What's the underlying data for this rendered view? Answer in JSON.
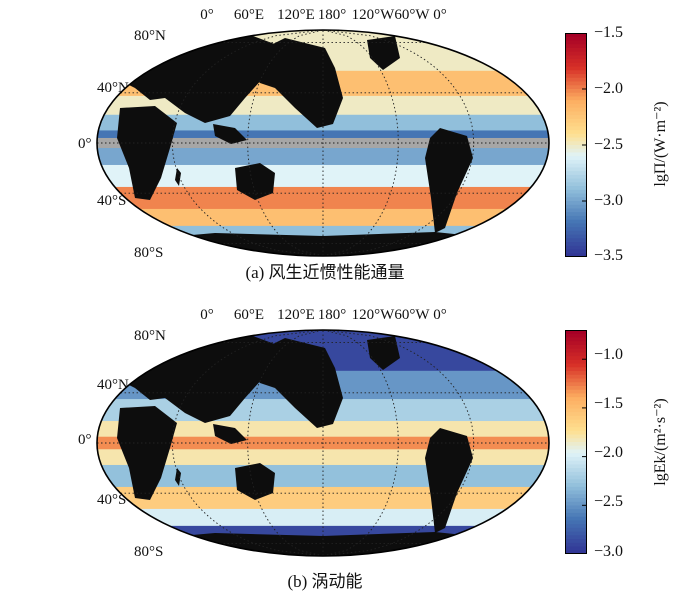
{
  "chart_data": [
    {
      "type": "heatmap",
      "panel": "a",
      "caption": "(a) 风生近惯性能通量",
      "colorbar": {
        "label": "lgΠ/(W·m⁻²)",
        "range": [
          -3.5,
          -1.5
        ],
        "ticks": [
          "−1.5",
          "−2.0",
          "−2.5",
          "−3.0",
          "−3.5"
        ],
        "tick_values": [
          -1.5,
          -2.0,
          -2.5,
          -3.0,
          -3.5
        ]
      },
      "lon_ticks": [
        "0°",
        "60°E",
        "120°E",
        "180°",
        "120°W",
        "60°W",
        "0°"
      ],
      "lat_ticks": [
        "80°N",
        "40°N",
        "0°",
        "40°S",
        "80°S"
      ],
      "bands": [
        {
          "lat": 70,
          "value": -2.5
        },
        {
          "lat": 45,
          "value": -2.2
        },
        {
          "lat": 30,
          "value": -2.5
        },
        {
          "lat": 15,
          "value": -2.9
        },
        {
          "lat": 5,
          "value": -3.2
        },
        {
          "lat": -10,
          "value": -3.0
        },
        {
          "lat": -25,
          "value": -2.6
        },
        {
          "lat": -45,
          "value": -2.0
        },
        {
          "lat": -60,
          "value": -2.2
        },
        {
          "lat": -72,
          "value": -2.9
        }
      ]
    },
    {
      "type": "heatmap",
      "panel": "b",
      "caption": "(b) 涡动能",
      "colorbar": {
        "label": "lgEk/(m²·s⁻²)",
        "range": [
          -3.0,
          -0.7
        ],
        "ticks": [
          "−1.0",
          "−1.5",
          "−2.0",
          "−2.5",
          "−3.0"
        ],
        "tick_values": [
          -1.0,
          -1.5,
          -2.0,
          -2.5,
          -3.0
        ]
      },
      "lon_ticks": [
        "0°",
        "60°E",
        "120°E",
        "180°",
        "120°W",
        "60°W",
        "0°"
      ],
      "lat_ticks": [
        "80°N",
        "40°N",
        "0°",
        "40°S",
        "80°S"
      ],
      "bands": [
        {
          "lat": 70,
          "value": -2.9
        },
        {
          "lat": 45,
          "value": -2.5
        },
        {
          "lat": 25,
          "value": -2.2
        },
        {
          "lat": 10,
          "value": -1.8
        },
        {
          "lat": 0,
          "value": -1.3
        },
        {
          "lat": -10,
          "value": -1.8
        },
        {
          "lat": -25,
          "value": -2.3
        },
        {
          "lat": -45,
          "value": -1.6
        },
        {
          "lat": -60,
          "value": -2.0
        },
        {
          "lat": -72,
          "value": -2.9
        }
      ]
    }
  ]
}
